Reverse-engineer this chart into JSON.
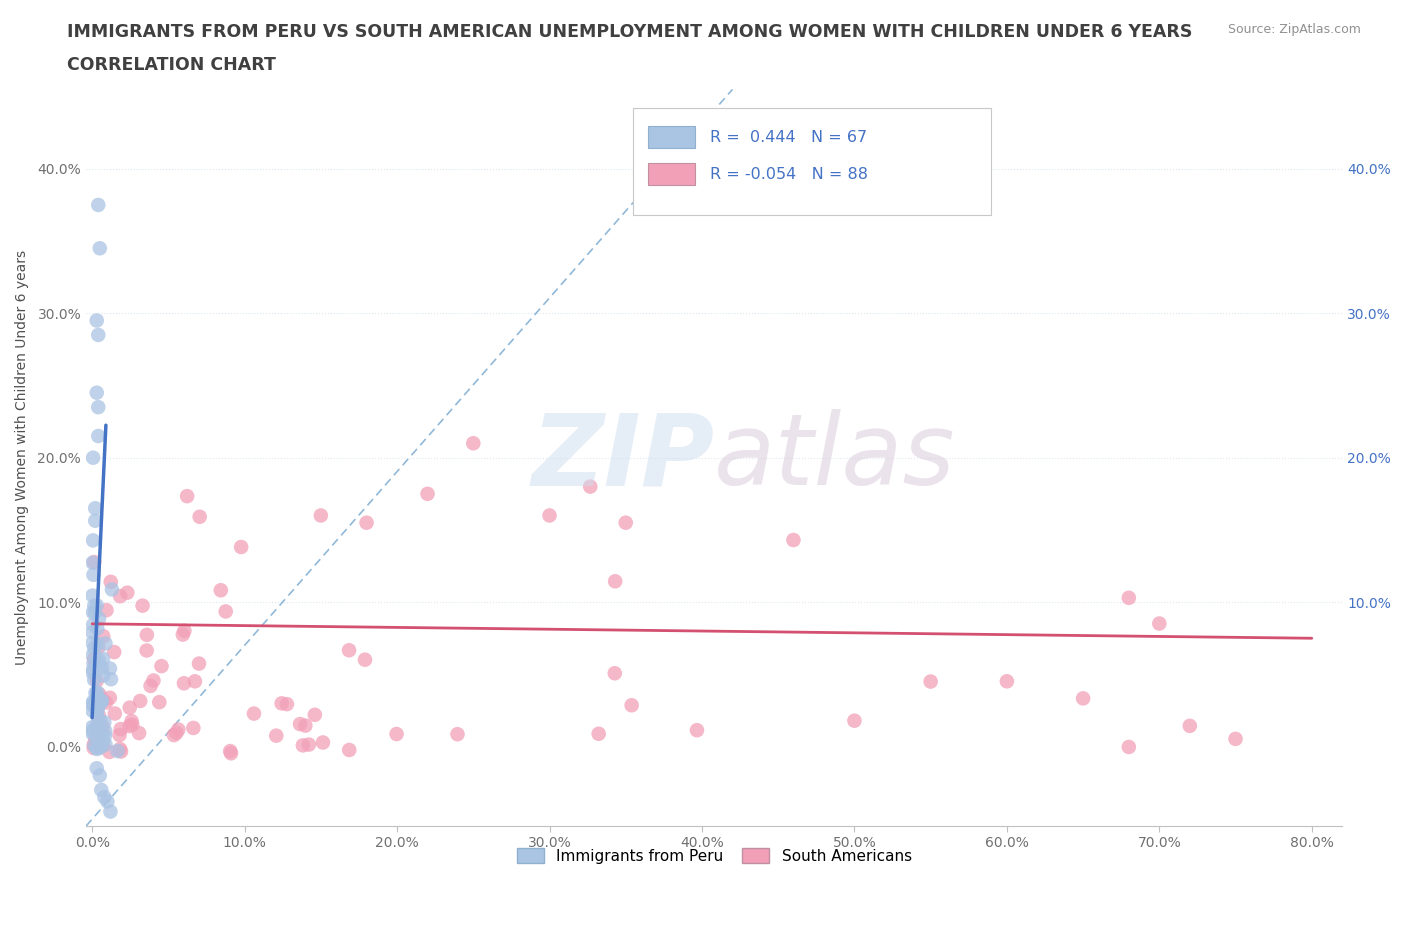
{
  "title_line1": "IMMIGRANTS FROM PERU VS SOUTH AMERICAN UNEMPLOYMENT AMONG WOMEN WITH CHILDREN UNDER 6 YEARS",
  "title_line2": "CORRELATION CHART",
  "source": "Source: ZipAtlas.com",
  "ylabel": "Unemployment Among Women with Children Under 6 years",
  "xlim": [
    -0.004,
    0.82
  ],
  "ylim": [
    -0.055,
    0.455
  ],
  "x_ticks": [
    0.0,
    0.1,
    0.2,
    0.3,
    0.4,
    0.5,
    0.6,
    0.7,
    0.8
  ],
  "x_tick_labels": [
    "0.0%",
    "10.0%",
    "20.0%",
    "30.0%",
    "40.0%",
    "50.0%",
    "60.0%",
    "70.0%",
    "80.0%"
  ],
  "y_ticks": [
    0.0,
    0.1,
    0.2,
    0.3,
    0.4
  ],
  "y_tick_labels": [
    "0.0%",
    "10.0%",
    "20.0%",
    "30.0%",
    "40.0%"
  ],
  "right_y_ticks": [
    0.1,
    0.2,
    0.3,
    0.4
  ],
  "right_y_tick_labels": [
    "10.0%",
    "20.0%",
    "30.0%",
    "40.0%"
  ],
  "watermark_zip": "ZIP",
  "watermark_atlas": "atlas",
  "legend_label1": "Immigrants from Peru",
  "legend_label2": "South Americans",
  "R1": "0.444",
  "N1": "67",
  "R2": "-0.054",
  "N2": "88",
  "color_blue": "#aac4e4",
  "color_pink": "#f2a0b8",
  "color_blue_line": "#4472c4",
  "color_pink_line": "#d45070",
  "color_dashed": "#90b8d8",
  "title_color": "#404040",
  "source_color": "#909090",
  "background_color": "#ffffff",
  "grid_color": "#dce8f0",
  "seed_peru": 17,
  "seed_sa": 42
}
